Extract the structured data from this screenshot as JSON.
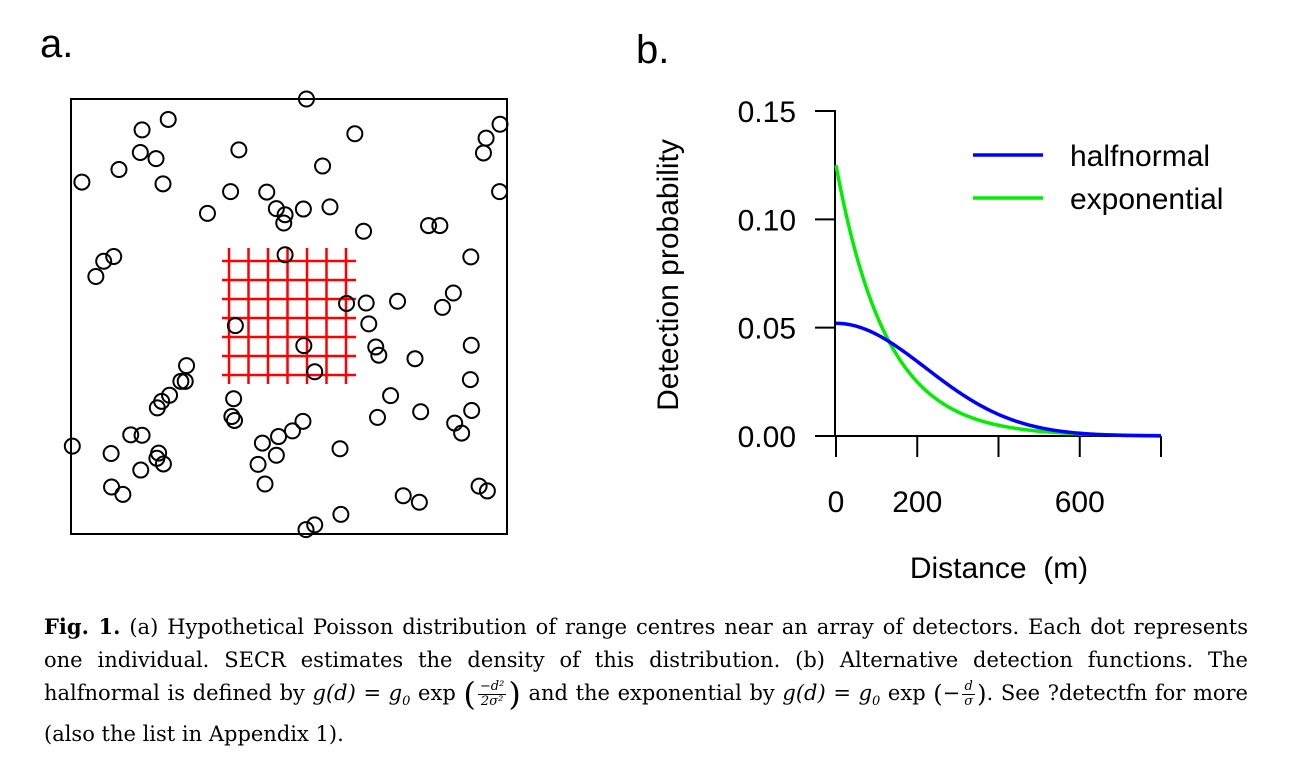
{
  "panel_a": {
    "label": "a.",
    "points": [
      [
        0.54,
        1.0
      ],
      [
        0.223,
        0.953
      ],
      [
        0.163,
        0.929
      ],
      [
        0.159,
        0.877
      ],
      [
        0.195,
        0.863
      ],
      [
        0.11,
        0.838
      ],
      [
        0.025,
        0.809
      ],
      [
        0.211,
        0.805
      ],
      [
        0.098,
        0.638
      ],
      [
        0.057,
        0.592
      ],
      [
        0.075,
        0.627
      ],
      [
        0.385,
        0.883
      ],
      [
        0.366,
        0.787
      ],
      [
        0.313,
        0.737
      ],
      [
        0.449,
        0.786
      ],
      [
        0.471,
        0.748
      ],
      [
        0.533,
        0.747
      ],
      [
        0.594,
        0.752
      ],
      [
        0.651,
        0.92
      ],
      [
        0.577,
        0.846
      ],
      [
        0.491,
        0.734
      ],
      [
        0.488,
        0.715
      ],
      [
        0.671,
        0.696
      ],
      [
        0.82,
        0.709
      ],
      [
        0.846,
        0.709
      ],
      [
        0.917,
        0.637
      ],
      [
        0.984,
        0.942
      ],
      [
        0.952,
        0.91
      ],
      [
        0.946,
        0.876
      ],
      [
        0.983,
        0.787
      ],
      [
        0.852,
        0.521
      ],
      [
        0.877,
        0.554
      ],
      [
        0.632,
        0.53
      ],
      [
        0.677,
        0.531
      ],
      [
        0.749,
        0.535
      ],
      [
        0.683,
        0.483
      ],
      [
        0.699,
        0.43
      ],
      [
        0.706,
        0.411
      ],
      [
        0.789,
        0.403
      ],
      [
        0.918,
        0.434
      ],
      [
        0.916,
        0.355
      ],
      [
        0.491,
        0.642
      ],
      [
        0.377,
        0.479
      ],
      [
        0.534,
        0.433
      ],
      [
        0.559,
        0.373
      ],
      [
        0.265,
        0.387
      ],
      [
        0.252,
        0.351
      ],
      [
        0.262,
        0.351
      ],
      [
        0.226,
        0.319
      ],
      [
        0.208,
        0.305
      ],
      [
        0.198,
        0.29
      ],
      [
        0.163,
        0.227
      ],
      [
        0.137,
        0.228
      ],
      [
        0.16,
        0.147
      ],
      [
        0.092,
        0.185
      ],
      [
        0.201,
        0.186
      ],
      [
        0.212,
        0.161
      ],
      [
        0.197,
        0.174
      ],
      [
        0.003,
        0.202
      ],
      [
        0.093,
        0.108
      ],
      [
        0.119,
        0.091
      ],
      [
        0.373,
        0.311
      ],
      [
        0.369,
        0.27
      ],
      [
        0.375,
        0.261
      ],
      [
        0.439,
        0.209
      ],
      [
        0.476,
        0.224
      ],
      [
        0.471,
        0.181
      ],
      [
        0.508,
        0.237
      ],
      [
        0.429,
        0.16
      ],
      [
        0.532,
        0.259
      ],
      [
        0.617,
        0.196
      ],
      [
        0.559,
        0.021
      ],
      [
        0.445,
        0.115
      ],
      [
        0.703,
        0.268
      ],
      [
        0.733,
        0.318
      ],
      [
        0.802,
        0.281
      ],
      [
        0.896,
        0.232
      ],
      [
        0.88,
        0.255
      ],
      [
        0.919,
        0.284
      ],
      [
        0.619,
        0.045
      ],
      [
        0.762,
        0.088
      ],
      [
        0.799,
        0.073
      ],
      [
        0.936,
        0.11
      ],
      [
        0.955,
        0.099
      ],
      [
        0.539,
        0.01
      ]
    ],
    "grid_lines": 7
  },
  "panel_b": {
    "label": "b."
  },
  "chart_data": {
    "type": "line",
    "xlabel": "Distance  (m)",
    "ylabel": "Detection probability",
    "x_ticks": [
      0,
      200,
      400,
      600,
      800
    ],
    "x_tick_labels": [
      "0",
      "200",
      "",
      "600",
      ""
    ],
    "y_ticks": [
      0.0,
      0.05,
      0.1,
      0.15
    ],
    "y_tick_labels": [
      "0.00",
      "0.05",
      "0.10",
      "0.15"
    ],
    "xlim": [
      0,
      800
    ],
    "ylim": [
      0,
      0.15
    ],
    "legend_position": "top-right",
    "series": [
      {
        "name": "halfnormal",
        "color": "#0000ff",
        "x": [
          0,
          50,
          100,
          150,
          200,
          250,
          300,
          350,
          400,
          450,
          500,
          550,
          600,
          650,
          700,
          750,
          800
        ],
        "y": [
          0.052,
          0.0507,
          0.0469,
          0.0413,
          0.0347,
          0.0279,
          0.0216,
          0.016,
          0.0114,
          0.0078,
          0.0051,
          0.0032,
          0.0019,
          0.0011,
          0.0006,
          0.0003,
          0.0002
        ]
      },
      {
        "name": "exponential",
        "color": "#00ee00",
        "x": [
          0,
          50,
          100,
          150,
          200,
          250,
          300,
          350,
          400,
          450,
          500,
          550,
          600,
          650,
          700,
          750,
          800
        ],
        "y": [
          0.125,
          0.0887,
          0.0629,
          0.0463,
          0.0347,
          0.0258,
          0.019,
          0.0139,
          0.0101,
          0.0073,
          0.0053,
          0.0038,
          0.0027,
          0.0019,
          0.0014,
          0.001,
          0.0007
        ]
      }
    ]
  },
  "caption": {
    "fig_label": "Fig.  1.",
    "text1": " (a) Hypothetical Poisson distribution of range centres near an array of detectors. Each dot represents one individual. SECR estimates the density of this distribution. (b) Alternative detection functions. The halfnormal is defined by ",
    "math1": "g(d) = g",
    "math1_sub": "0",
    "math1_fn": " exp",
    "frac1_num": "−d²",
    "frac1_den": "2σ²",
    "text2": " and the exponential by ",
    "math2": "g(d) = g",
    "math2_sub": "0",
    "math2_fn": " exp",
    "math2_inner": "−",
    "frac2_num": "d",
    "frac2_den": "σ",
    "text3": ". See ?detectfn for more (also the list in Appendix 1)."
  }
}
